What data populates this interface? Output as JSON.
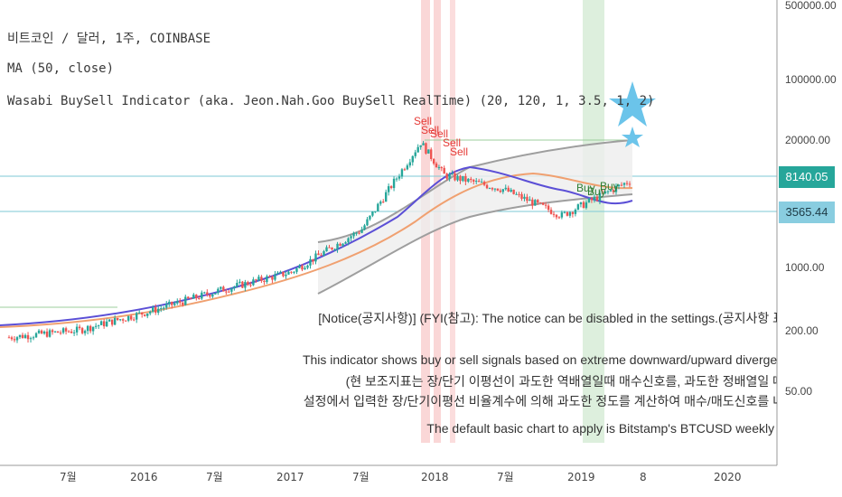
{
  "legend": {
    "symbol": "비트코인 / 달러, 1주, COINBASE",
    "ma": "MA (50, close)",
    "indicator": "Wasabi BuySell Indicator (aka. Jeon.Nah.Goo BuySell RealTime) (20, 120, 1, 3.5, 1, 2)"
  },
  "price_tags": {
    "last": "8140.05",
    "ma": "3565.44"
  },
  "notice": {
    "line1": "[Notice(공지사항)]  (FYI(참고): The notice can be disabled in the settings.(공지사항 표",
    "line2": "This indicator shows buy or sell signals based on extreme downward/upward divergen",
    "line3": "(현 보조지표는 장/단기 이평선이 과도한 역배열일때 매수신호를, 과도한 정배열일 때",
    "line4": "설정에서 입력한 장/단기이평선 비율계수에 의해 과도한 정도를 계산하여 매수/매도신호를 내",
    "line5": "The default basic chart to apply is Bitstamp's BTCUSD weekly c"
  },
  "signals": {
    "sell": "Sell",
    "buy": "Buy"
  },
  "colors": {
    "up": "#26a69a",
    "down": "#ef5350",
    "ma": "#5b4fd6",
    "long_ma": "#f0a070",
    "band": "#9e9e9e",
    "hline": "#7ecad6",
    "tag_last": "#26a69a",
    "tag_ma": "#89cde0",
    "sell_zone": "#f8c6c6",
    "buy_zone": "#cfe8cf",
    "star": "#6bc4ea"
  },
  "chart_data": {
    "type": "candlestick",
    "y_scale": "log",
    "y_ticks": [
      "500000.00",
      "100000.00",
      "20000.00",
      "1000.00",
      "200.00",
      "50.00"
    ],
    "x_ticks": [
      "7월",
      "2016",
      "7월",
      "2017",
      "7월",
      "2018",
      "7월",
      "2019",
      "8",
      "2020"
    ],
    "last_price": 8140.05,
    "ma_price": 3565.44,
    "price_path": [
      {
        "date": "2015-01",
        "close": 220
      },
      {
        "date": "2015-07",
        "close": 260
      },
      {
        "date": "2016-01",
        "close": 400
      },
      {
        "date": "2016-07",
        "close": 650
      },
      {
        "date": "2017-01",
        "close": 980
      },
      {
        "date": "2017-07",
        "close": 2600
      },
      {
        "date": "2017-12",
        "close": 19000
      },
      {
        "date": "2018-02",
        "close": 9000
      },
      {
        "date": "2018-07",
        "close": 6500
      },
      {
        "date": "2018-12",
        "close": 3565
      },
      {
        "date": "2019-06",
        "close": 8140
      }
    ]
  }
}
